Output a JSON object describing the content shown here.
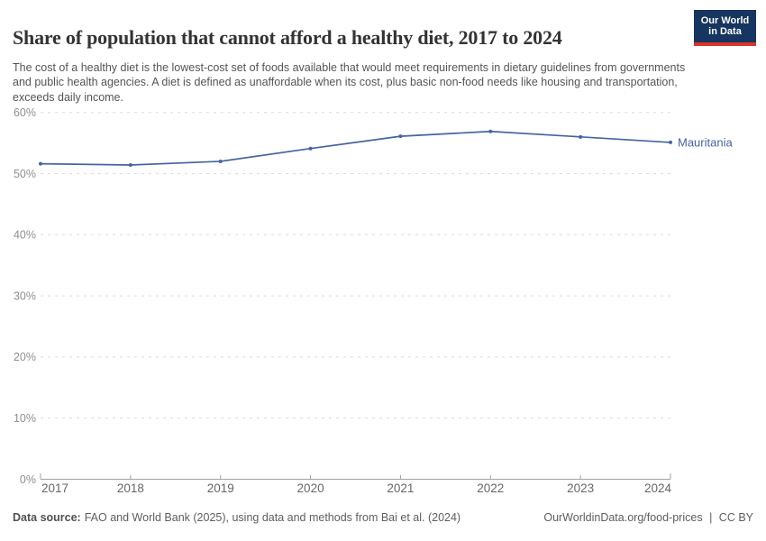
{
  "header": {
    "title": "Share of population that cannot afford a healthy diet, 2017 to 2024",
    "subtitle": "The cost of a healthy diet is the lowest-cost set of foods available that would meet requirements in dietary guidelines from governments and public health agencies. A diet is defined as unaffordable when its cost, plus basic non-food needs like housing and transportation, exceeds daily income."
  },
  "logo": {
    "line1": "Our World",
    "line2": "in Data",
    "bg_color": "#163560",
    "accent_color": "#d8352e"
  },
  "chart_data": {
    "type": "line",
    "title": "Share of population that cannot afford a healthy diet, 2017 to 2024",
    "x": [
      2017,
      2018,
      2019,
      2020,
      2021,
      2022,
      2023,
      2024
    ],
    "x_tick_labels": [
      "2017",
      "2018",
      "2019",
      "2020",
      "2021",
      "2022",
      "2023",
      "2024"
    ],
    "series": [
      {
        "name": "Mauritania",
        "color": "#4664a0",
        "values": [
          51.6,
          51.4,
          52.0,
          54.1,
          56.1,
          56.9,
          56.0,
          55.1
        ]
      }
    ],
    "ylim": [
      0,
      60
    ],
    "yticks": [
      0,
      10,
      20,
      30,
      40,
      50,
      60
    ],
    "ytick_labels": [
      "0%",
      "10%",
      "20%",
      "30%",
      "40%",
      "50%",
      "60%"
    ],
    "grid": "horizontal-dashed",
    "gridline_color": "#dcdcdc",
    "axis_color": "#a1a1a1",
    "ytick_label_color": "#8f8f8f",
    "xtick_label_color": "#666666",
    "legend_position": "line-end-label"
  },
  "footer": {
    "source_label": "Data source:",
    "source_text": "FAO and World Bank (2025), using data and methods from Bai et al. (2024)",
    "link_text": "OurWorldinData.org/food-prices",
    "separator": "|",
    "license": "CC BY"
  }
}
